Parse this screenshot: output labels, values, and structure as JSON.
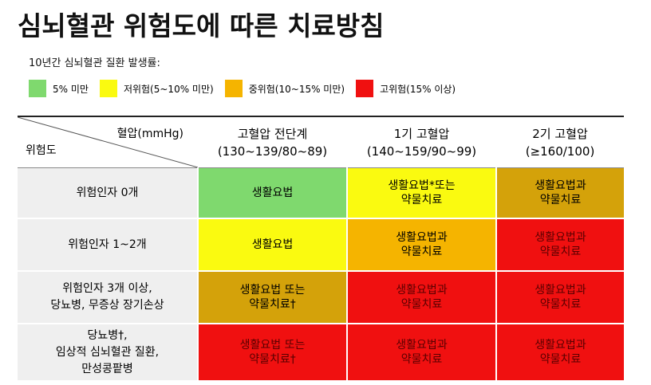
{
  "title": "심뇌혈관 위험도에 따른 치료방침",
  "legend": {
    "heading": "10년간 심뇌혈관 질환 발생률:",
    "items": [
      {
        "label": "5% 미만",
        "color": "#7fd96e"
      },
      {
        "label": "저위험(5~10% 미만)",
        "color": "#fafa10"
      },
      {
        "label": "중위험(10~15% 미만)",
        "color": "#f5b400"
      },
      {
        "label": "고위험(15% 이상)",
        "color": "#f01010"
      }
    ]
  },
  "table": {
    "corner": {
      "top": "혈압(mmHg)",
      "bottom": "위험도"
    },
    "columns": [
      {
        "lines": [
          "고혈압 전단계",
          "(130~139/80~89)"
        ]
      },
      {
        "lines": [
          "1기 고혈압",
          "(140~159/90~99)"
        ]
      },
      {
        "lines": [
          "2기 고혈압",
          "(≥160/100)"
        ]
      }
    ],
    "rows": [
      {
        "label": [
          "위험인자 0개"
        ],
        "cells": [
          {
            "lines": [
              "생활요법"
            ],
            "color": "#7fd96e"
          },
          {
            "lines": [
              "생활요법*또는",
              "약물치료"
            ],
            "color": "#fafa10"
          },
          {
            "lines": [
              "생활요법과",
              "약물치료"
            ],
            "color": "#d4a20a"
          }
        ]
      },
      {
        "label": [
          "위험인자 1~2개"
        ],
        "cells": [
          {
            "lines": [
              "생활요법"
            ],
            "color": "#fafa10"
          },
          {
            "lines": [
              "생활요법과",
              "약물치료"
            ],
            "color": "#f5b400"
          },
          {
            "lines": [
              "생활요법과",
              "약물치료"
            ],
            "color": "#f01010"
          }
        ]
      },
      {
        "label": [
          "위험인자 3개 이상,",
          "당뇨병, 무증상 장기손상"
        ],
        "cells": [
          {
            "lines": [
              "생활요법 또는",
              "약물치료†"
            ],
            "color": "#d4a20a"
          },
          {
            "lines": [
              "생활요법과",
              "약물치료"
            ],
            "color": "#f01010"
          },
          {
            "lines": [
              "생활요법과",
              "약물치료"
            ],
            "color": "#f01010"
          }
        ]
      },
      {
        "label": [
          "당뇨병†,",
          "임상적 심뇌혈관 질환,",
          "만성콩팥병"
        ],
        "cells": [
          {
            "lines": [
              "생활요법 또는",
              "약물치료†"
            ],
            "color": "#f01010"
          },
          {
            "lines": [
              "생활요법과",
              "약물치료"
            ],
            "color": "#f01010"
          },
          {
            "lines": [
              "생활요법과",
              "약물치료"
            ],
            "color": "#f01010"
          }
        ]
      }
    ]
  }
}
